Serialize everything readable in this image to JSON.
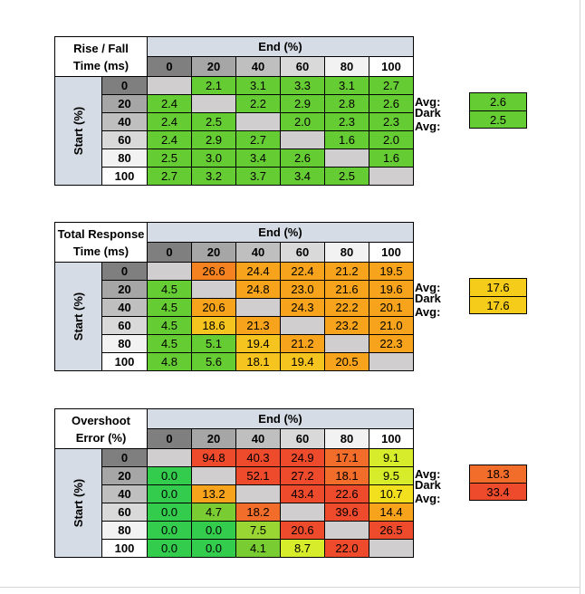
{
  "chart_data": [
    {
      "type": "table",
      "title_lines": [
        "Rise / Fall",
        "Time (ms)"
      ],
      "column_header": "End (%)",
      "row_header": "Start (%)",
      "columns": [
        "0",
        "20",
        "40",
        "60",
        "80",
        "100"
      ],
      "rows": [
        "0",
        "20",
        "40",
        "60",
        "80",
        "100"
      ],
      "values": [
        [
          null,
          2.1,
          3.1,
          3.3,
          3.1,
          2.7
        ],
        [
          2.4,
          null,
          2.2,
          2.9,
          2.8,
          2.6
        ],
        [
          2.4,
          2.5,
          null,
          2.0,
          2.3,
          2.3
        ],
        [
          2.4,
          2.9,
          2.7,
          null,
          1.6,
          2.0
        ],
        [
          2.5,
          3.0,
          3.4,
          2.6,
          null,
          1.6
        ],
        [
          2.7,
          3.2,
          3.7,
          3.4,
          2.5,
          null
        ]
      ],
      "cell_colors": [
        [
          "#d0cece",
          "#66cc33",
          "#66cc33",
          "#66cc33",
          "#66cc33",
          "#66cc33"
        ],
        [
          "#66cc33",
          "#d0cece",
          "#66cc33",
          "#66cc33",
          "#66cc33",
          "#66cc33"
        ],
        [
          "#66cc33",
          "#66cc33",
          "#d0cece",
          "#66cc33",
          "#66cc33",
          "#66cc33"
        ],
        [
          "#66cc33",
          "#66cc33",
          "#66cc33",
          "#d0cece",
          "#66cc33",
          "#66cc33"
        ],
        [
          "#66cc33",
          "#66cc33",
          "#66cc33",
          "#66cc33",
          "#d0cece",
          "#66cc33"
        ],
        [
          "#66cc33",
          "#66cc33",
          "#66cc33",
          "#66cc33",
          "#66cc33",
          "#d0cece"
        ]
      ],
      "summary": [
        {
          "label": "Avg:",
          "value": "2.6",
          "color": "#66cc33"
        },
        {
          "label": "Dark Avg:",
          "value": "2.5",
          "color": "#66cc33"
        }
      ]
    },
    {
      "type": "table",
      "title_lines": [
        "Total Response",
        "Time (ms)"
      ],
      "column_header": "End (%)",
      "row_header": "Start (%)",
      "columns": [
        "0",
        "20",
        "40",
        "60",
        "80",
        "100"
      ],
      "rows": [
        "0",
        "20",
        "40",
        "60",
        "80",
        "100"
      ],
      "values": [
        [
          null,
          26.6,
          24.4,
          22.4,
          21.2,
          19.5
        ],
        [
          4.5,
          null,
          24.8,
          23.0,
          21.6,
          19.6
        ],
        [
          4.5,
          20.6,
          null,
          24.3,
          22.2,
          20.1
        ],
        [
          4.5,
          18.6,
          21.3,
          null,
          23.2,
          21.0
        ],
        [
          4.5,
          5.1,
          19.4,
          21.2,
          null,
          22.3
        ],
        [
          4.8,
          5.6,
          18.1,
          19.4,
          20.5,
          null
        ]
      ],
      "cell_colors": [
        [
          "#d0cece",
          "#f58220",
          "#f7a31c",
          "#f7a31c",
          "#f7a31c",
          "#f7a31c"
        ],
        [
          "#66cc33",
          "#d0cece",
          "#f7a31c",
          "#f7a31c",
          "#f7a31c",
          "#f7a31c"
        ],
        [
          "#66cc33",
          "#f7a31c",
          "#d0cece",
          "#f7a31c",
          "#f7a31c",
          "#f7a31c"
        ],
        [
          "#66cc33",
          "#f5c41e",
          "#f7a31c",
          "#d0cece",
          "#f7a31c",
          "#f7a31c"
        ],
        [
          "#66cc33",
          "#66cc33",
          "#f5c41e",
          "#f7a31c",
          "#d0cece",
          "#f7a31c"
        ],
        [
          "#66cc33",
          "#66cc33",
          "#f5c41e",
          "#f5c41e",
          "#f7a31c",
          "#d0cece"
        ]
      ],
      "summary": [
        {
          "label": "Avg:",
          "value": "17.6",
          "color": "#f5cc1a"
        },
        {
          "label": "Dark Avg:",
          "value": "17.6",
          "color": "#f5cc1a"
        }
      ]
    },
    {
      "type": "table",
      "title_lines": [
        "Overshoot",
        "Error (%)"
      ],
      "column_header": "End (%)",
      "row_header": "Start (%)",
      "columns": [
        "0",
        "20",
        "40",
        "60",
        "80",
        "100"
      ],
      "rows": [
        "0",
        "20",
        "40",
        "60",
        "80",
        "100"
      ],
      "values": [
        [
          null,
          94.8,
          40.3,
          24.9,
          17.1,
          9.1
        ],
        [
          0.0,
          null,
          52.1,
          27.2,
          18.1,
          9.5
        ],
        [
          0.0,
          13.2,
          null,
          43.4,
          22.6,
          10.7
        ],
        [
          0.0,
          4.7,
          18.2,
          null,
          39.6,
          14.4
        ],
        [
          0.0,
          0.0,
          7.5,
          20.6,
          null,
          26.5
        ],
        [
          0.0,
          0.0,
          4.1,
          8.7,
          22.0,
          null
        ]
      ],
      "cell_colors": [
        [
          "#d0cece",
          "#ee4a2c",
          "#ee4a2c",
          "#ee4a2c",
          "#f26d2a",
          "#d7ec2a"
        ],
        [
          "#33cc4d",
          "#d0cece",
          "#ee4a2c",
          "#ee4a2c",
          "#f26d2a",
          "#d7ec2a"
        ],
        [
          "#33cc4d",
          "#f7a31c",
          "#d0cece",
          "#ee4a2c",
          "#ee4a2c",
          "#f2e01e"
        ],
        [
          "#33cc4d",
          "#7acc33",
          "#f26d2a",
          "#d0cece",
          "#ee4a2c",
          "#f7a31c"
        ],
        [
          "#33cc4d",
          "#33cc4d",
          "#99d633",
          "#ee4a2c",
          "#d0cece",
          "#ee4a2c"
        ],
        [
          "#33cc4d",
          "#33cc4d",
          "#7acc33",
          "#d7ec2a",
          "#ee4a2c",
          "#d0cece"
        ]
      ],
      "summary": [
        {
          "label": "Avg:",
          "value": "18.3",
          "color": "#f26d2a"
        },
        {
          "label": "Dark Avg:",
          "value": "33.4",
          "color": "#ee4a2c"
        }
      ]
    }
  ],
  "style": {
    "header_colors": [
      "#7f7f7f",
      "#a6a6a6",
      "#bfbfbf",
      "#d9d9d9",
      "#f2f2f2",
      "#ffffff"
    ]
  }
}
